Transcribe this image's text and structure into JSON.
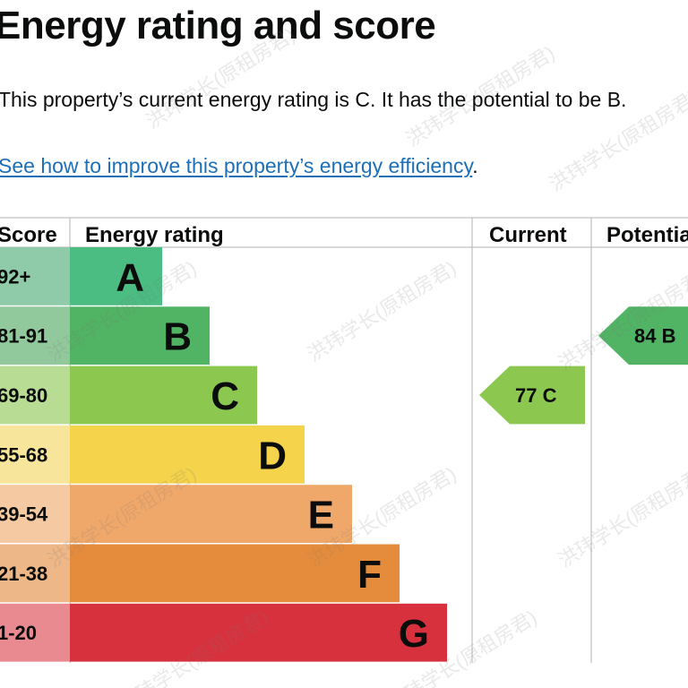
{
  "page": {
    "title": "Energy rating and score",
    "summary": "This property’s current energy rating is C. It has the potential to be B.",
    "link_text": "See how to improve this property’s energy efficiency",
    "link_suffix": "."
  },
  "chart_data": {
    "type": "table",
    "headers": {
      "score": "Score",
      "rating": "Energy rating",
      "current": "Current",
      "potential": "Potential"
    },
    "bands": [
      {
        "range": "92+",
        "letter": "A",
        "color": "#4bbd82",
        "score_bg": "#8fcba8"
      },
      {
        "range": "81-91",
        "letter": "B",
        "color": "#51b364",
        "score_bg": "#92c99c"
      },
      {
        "range": "69-80",
        "letter": "C",
        "color": "#8cc850",
        "score_bg": "#b9dc94"
      },
      {
        "range": "55-68",
        "letter": "D",
        "color": "#f5d34a",
        "score_bg": "#f7e59b"
      },
      {
        "range": "39-54",
        "letter": "E",
        "color": "#f0a86a",
        "score_bg": "#f5c9a2"
      },
      {
        "range": "21-38",
        "letter": "F",
        "color": "#e58c3c",
        "score_bg": "#eeb787"
      },
      {
        "range": "1-20",
        "letter": "G",
        "color": "#d8313e",
        "score_bg": "#e88a90"
      }
    ],
    "current": {
      "score": 77,
      "letter": "C",
      "label": "77 C",
      "color": "#8cc850"
    },
    "potential": {
      "score": 84,
      "letter": "B",
      "label": "84 B",
      "color": "#51b364"
    }
  },
  "watermark": "洪玮学长(原租房君)"
}
